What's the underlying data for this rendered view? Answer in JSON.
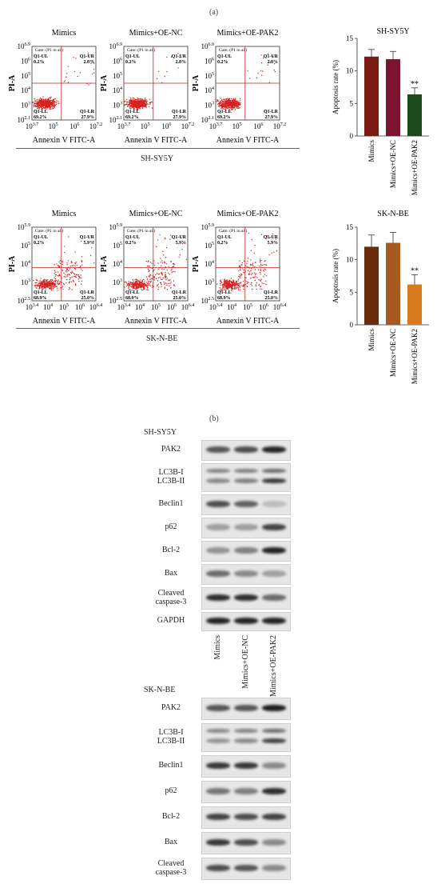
{
  "panel_a_label": "(a)",
  "panel_b_label": "(b)",
  "flow": {
    "groups": [
      "Mimics",
      "Mimics+OE-NC",
      "Mimics+OE-PAK2"
    ],
    "x_axis_label": "Annexin V FITC-A",
    "y_axis_label": "PI-A",
    "gate_label": "Gate: (P1 in all)",
    "quadrants": [
      "Q1-UL",
      "Q1-UR",
      "Q1-LL",
      "Q1-LR"
    ],
    "rows": [
      {
        "cell_line": "SH-SY5Y",
        "y_ticks": [
          "10^2.1",
          "10^3",
          "10^4",
          "10^5",
          "10^6",
          "10^6.9"
        ],
        "x_ticks": [
          "10^3.7",
          "10^5",
          "10^6",
          "10^7.2"
        ],
        "ul": "0.2%",
        "ur": "2.8%",
        "ll": "69.2%",
        "lr": "27.9%"
      },
      {
        "cell_line": "SK-N-BE",
        "y_ticks": [
          "10^2.5",
          "10^3",
          "10^4",
          "10^5",
          "10^5.9"
        ],
        "x_ticks": [
          "10^3.4",
          "10^4",
          "10^5",
          "10^6",
          "10^6.4"
        ],
        "ul": "0.2%",
        "ur": "5.9%",
        "ll": "68.9%",
        "lr": "25.0%"
      }
    ]
  },
  "chart_data": [
    {
      "type": "bar",
      "title": "SH-SY5Y",
      "ylabel": "Apoptosis rate (%)",
      "categories": [
        "Mimics",
        "Mimics+OE-NC",
        "Mimics+OE-PAK2"
      ],
      "values": [
        12.2,
        11.8,
        6.4
      ],
      "errors": [
        1.1,
        1.2,
        1.0
      ],
      "ylim": [
        0,
        15
      ],
      "yticks": [
        0,
        5,
        10,
        15
      ],
      "annotations": [
        "",
        "",
        "**"
      ],
      "colors": [
        "#7a1a10",
        "#7a1430",
        "#1f4a1e"
      ]
    },
    {
      "type": "bar",
      "title": "SK-N-BE",
      "ylabel": "Apoptosis rate (%)",
      "categories": [
        "Mimics",
        "Mimics+OE-NC",
        "Mimics+OE-PAK2"
      ],
      "values": [
        12.0,
        12.6,
        6.2
      ],
      "errors": [
        1.8,
        1.6,
        1.5
      ],
      "ylim": [
        0,
        15
      ],
      "yticks": [
        0,
        5,
        10,
        15
      ],
      "annotations": [
        "",
        "",
        "**"
      ],
      "colors": [
        "#6a2a0e",
        "#a85a1e",
        "#d97a1e"
      ]
    }
  ],
  "western": {
    "lanes": [
      "Mimics",
      "Mimics+OE-NC",
      "Mimics+OE-PAK2"
    ],
    "blots": [
      {
        "cell_line": "SH-SY5Y",
        "proteins": [
          {
            "label": "PAK2",
            "bands": [
              0.7,
              0.75,
              0.95
            ]
          },
          {
            "label": "LC3B-I\nLC3B-II",
            "bands": [
              0.45,
              0.5,
              0.85
            ]
          },
          {
            "label": "Beclin1",
            "bands": [
              0.75,
              0.65,
              0.2
            ]
          },
          {
            "label": "p62",
            "bands": [
              0.35,
              0.35,
              0.8
            ]
          },
          {
            "label": "Bcl-2",
            "bands": [
              0.4,
              0.5,
              0.95
            ]
          },
          {
            "label": "Bax",
            "bands": [
              0.6,
              0.45,
              0.35
            ]
          },
          {
            "label": "Cleaved\ncaspase-3",
            "bands": [
              0.9,
              0.9,
              0.6
            ]
          },
          {
            "label": "GAPDH",
            "bands": [
              0.95,
              0.95,
              0.95
            ]
          }
        ]
      },
      {
        "cell_line": "SK-N-BE",
        "proteins": [
          {
            "label": "PAK2",
            "bands": [
              0.7,
              0.7,
              0.98
            ]
          },
          {
            "label": "LC3B-I\nLC3B-II",
            "bands": [
              0.4,
              0.45,
              0.8
            ]
          },
          {
            "label": "Beclin1",
            "bands": [
              0.85,
              0.85,
              0.45
            ]
          },
          {
            "label": "p62",
            "bands": [
              0.55,
              0.5,
              0.9
            ]
          },
          {
            "label": "Bcl-2",
            "bands": [
              0.8,
              0.75,
              0.8
            ]
          },
          {
            "label": "Bax",
            "bands": [
              0.85,
              0.75,
              0.45
            ]
          },
          {
            "label": "Cleaved\ncaspase-3",
            "bands": [
              0.75,
              0.7,
              0.45
            ]
          }
        ]
      }
    ]
  }
}
